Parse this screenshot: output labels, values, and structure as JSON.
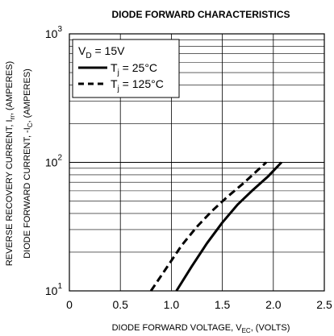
{
  "chart_data": {
    "type": "line",
    "title": "DIODE FORWARD CHARACTERISTICS",
    "xlabel": "DIODE FORWARD VOLTAGE, V",
    "xlabel_sub": "EC",
    "xlabel_tail": ", (VOLTS)",
    "ylabel_outer": "REVERSE RECOVERY CURRENT, I",
    "ylabel_outer_sub": "rr",
    "ylabel_outer_tail": ", (AMPERES)",
    "ylabel_inner": "DIODE FORWARD CURRENT, -I",
    "ylabel_inner_sub": "C",
    "ylabel_inner_tail": ", (AMPERES)",
    "xlim": [
      0,
      2.5
    ],
    "ylim": [
      10,
      1000
    ],
    "yscale": "log",
    "grid": true,
    "legend_position": "top-left",
    "x_ticks": [
      "0",
      "0.5",
      "1.0",
      "1.5",
      "2.0",
      "2.5"
    ],
    "y_ticks": [
      {
        "base": "10",
        "exp": "1"
      },
      {
        "base": "10",
        "exp": "2"
      },
      {
        "base": "10",
        "exp": "3"
      }
    ],
    "condition": {
      "prefix": "V",
      "sub": "D",
      "suffix": " = 15V"
    },
    "series": [
      {
        "name_prefix": "T",
        "name_sub": "j",
        "name_suffix": " = 25°C",
        "style": "solid",
        "x": [
          1.05,
          1.2,
          1.35,
          1.5,
          1.65,
          1.8,
          1.95,
          2.08
        ],
        "y": [
          10,
          15.5,
          23.5,
          34,
          47,
          61,
          78,
          100
        ]
      },
      {
        "name_prefix": "T",
        "name_sub": "j",
        "name_suffix": " = 125°C",
        "style": "dashed",
        "x": [
          0.8,
          0.95,
          1.1,
          1.25,
          1.4,
          1.55,
          1.7,
          1.82,
          1.93
        ],
        "y": [
          10,
          15,
          22.5,
          31.5,
          42,
          54,
          68,
          83,
          100
        ]
      }
    ]
  }
}
